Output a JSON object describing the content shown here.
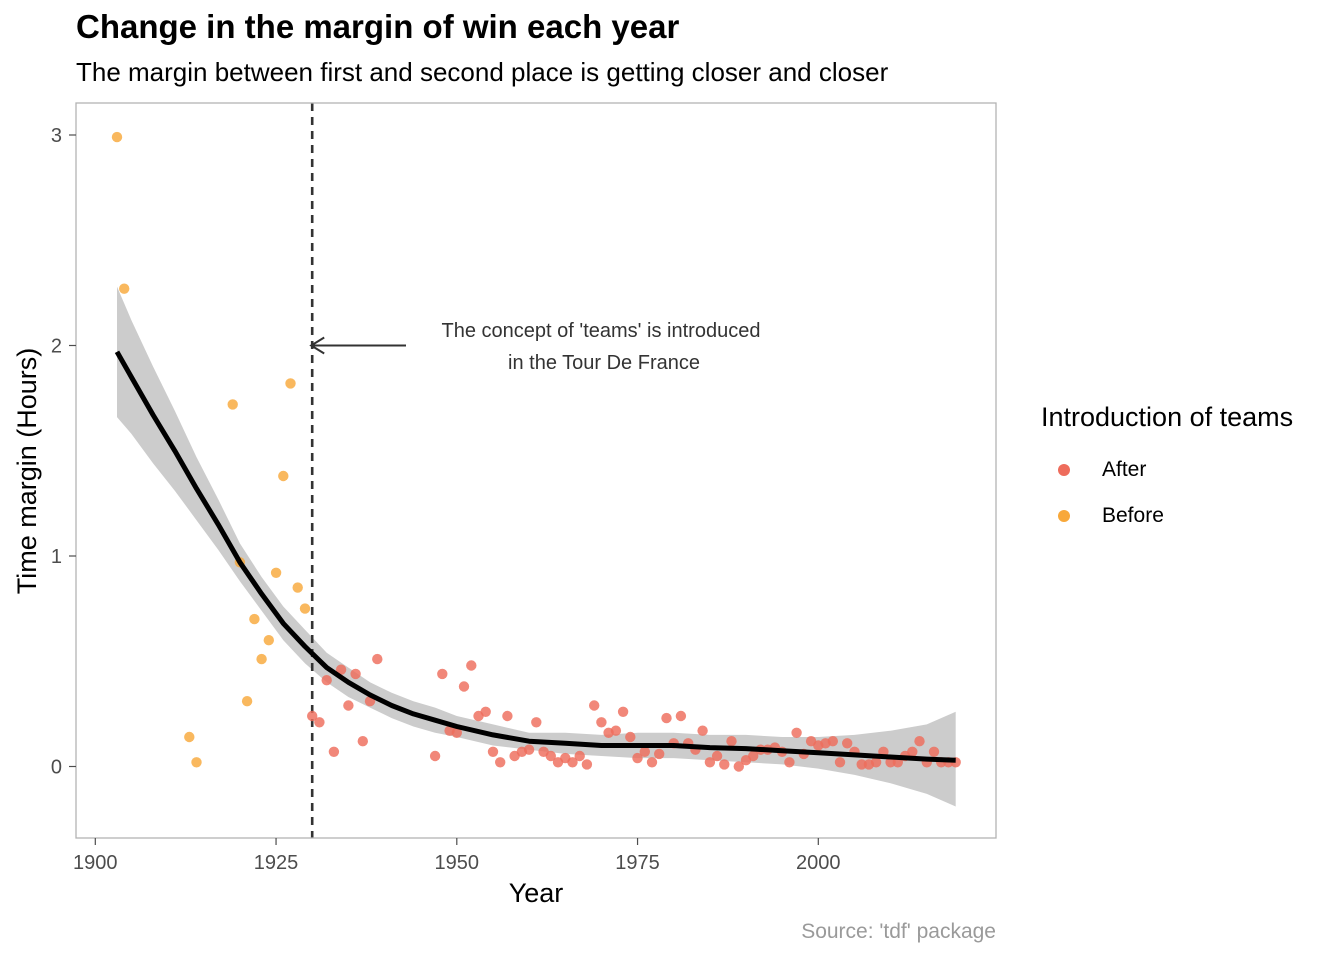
{
  "title": "Change in the margin of win each year",
  "subtitle": "The margin between first and second place is getting closer and closer",
  "caption": "Source: 'tdf' package",
  "legend": {
    "title": "Introduction of teams",
    "items": [
      {
        "label": "After",
        "color": "#ee6c5c"
      },
      {
        "label": "Before",
        "color": "#f8a83a"
      }
    ]
  },
  "annotation": {
    "lines": [
      "The concept of 'teams' is introduced",
      "in the Tour De France"
    ],
    "arrow_to": {
      "x": 1930,
      "y": 2.0
    },
    "vline_x": 1930
  },
  "chart_data": {
    "type": "scatter",
    "xlabel": "Year",
    "ylabel": "Time margin (Hours)",
    "xlim": [
      1900,
      2020
    ],
    "ylim": [
      -0.35,
      3.1
    ],
    "x_ticks": [
      1900,
      1925,
      1950,
      1975,
      2000
    ],
    "y_ticks": [
      0,
      1,
      2,
      3
    ],
    "grid": false,
    "legend_position": "right",
    "series": [
      {
        "name": "Before",
        "color": "#f8a83a",
        "points": [
          [
            1903,
            2.99
          ],
          [
            1904,
            2.27
          ],
          [
            1913,
            0.14
          ],
          [
            1914,
            0.02
          ],
          [
            1919,
            1.72
          ],
          [
            1920,
            0.97
          ],
          [
            1921,
            0.31
          ],
          [
            1922,
            0.7
          ],
          [
            1923,
            0.51
          ],
          [
            1924,
            0.6
          ],
          [
            1925,
            0.92
          ],
          [
            1926,
            1.38
          ],
          [
            1927,
            1.82
          ],
          [
            1928,
            0.85
          ],
          [
            1929,
            0.75
          ]
        ]
      },
      {
        "name": "After",
        "color": "#ee6c5c",
        "points": [
          [
            1930,
            0.24
          ],
          [
            1931,
            0.21
          ],
          [
            1932,
            0.41
          ],
          [
            1933,
            0.07
          ],
          [
            1934,
            0.46
          ],
          [
            1935,
            0.29
          ],
          [
            1936,
            0.44
          ],
          [
            1937,
            0.12
          ],
          [
            1938,
            0.31
          ],
          [
            1939,
            0.51
          ],
          [
            1947,
            0.05
          ],
          [
            1948,
            0.44
          ],
          [
            1949,
            0.17
          ],
          [
            1950,
            0.16
          ],
          [
            1951,
            0.38
          ],
          [
            1952,
            0.48
          ],
          [
            1953,
            0.24
          ],
          [
            1954,
            0.26
          ],
          [
            1955,
            0.07
          ],
          [
            1956,
            0.02
          ],
          [
            1957,
            0.24
          ],
          [
            1958,
            0.05
          ],
          [
            1959,
            0.07
          ],
          [
            1960,
            0.08
          ],
          [
            1961,
            0.21
          ],
          [
            1962,
            0.07
          ],
          [
            1963,
            0.05
          ],
          [
            1964,
            0.02
          ],
          [
            1965,
            0.04
          ],
          [
            1966,
            0.02
          ],
          [
            1967,
            0.05
          ],
          [
            1968,
            0.01
          ],
          [
            1969,
            0.29
          ],
          [
            1970,
            0.21
          ],
          [
            1971,
            0.16
          ],
          [
            1972,
            0.17
          ],
          [
            1973,
            0.26
          ],
          [
            1974,
            0.14
          ],
          [
            1975,
            0.04
          ],
          [
            1976,
            0.07
          ],
          [
            1977,
            0.02
          ],
          [
            1978,
            0.06
          ],
          [
            1979,
            0.23
          ],
          [
            1980,
            0.11
          ],
          [
            1981,
            0.24
          ],
          [
            1982,
            0.11
          ],
          [
            1983,
            0.08
          ],
          [
            1984,
            0.17
          ],
          [
            1985,
            0.02
          ],
          [
            1986,
            0.05
          ],
          [
            1987,
            0.01
          ],
          [
            1988,
            0.12
          ],
          [
            1989,
            0.0
          ],
          [
            1990,
            0.03
          ],
          [
            1991,
            0.05
          ],
          [
            1992,
            0.08
          ],
          [
            1993,
            0.08
          ],
          [
            1994,
            0.09
          ],
          [
            1995,
            0.07
          ],
          [
            1996,
            0.02
          ],
          [
            1997,
            0.16
          ],
          [
            1998,
            0.06
          ],
          [
            1999,
            0.12
          ],
          [
            2000,
            0.1
          ],
          [
            2001,
            0.11
          ],
          [
            2002,
            0.12
          ],
          [
            2003,
            0.02
          ],
          [
            2004,
            0.11
          ],
          [
            2005,
            0.07
          ],
          [
            2006,
            0.01
          ],
          [
            2007,
            0.01
          ],
          [
            2008,
            0.02
          ],
          [
            2009,
            0.07
          ],
          [
            2010,
            0.02
          ],
          [
            2011,
            0.02
          ],
          [
            2012,
            0.05
          ],
          [
            2013,
            0.07
          ],
          [
            2014,
            0.12
          ],
          [
            2015,
            0.02
          ],
          [
            2016,
            0.07
          ],
          [
            2017,
            0.02
          ],
          [
            2018,
            0.02
          ],
          [
            2019,
            0.02
          ]
        ]
      }
    ],
    "smooth": {
      "x": [
        1903,
        1905,
        1908,
        1911,
        1914,
        1917,
        1920,
        1923,
        1926,
        1929,
        1932,
        1935,
        1938,
        1941,
        1944,
        1947,
        1950,
        1955,
        1960,
        1965,
        1970,
        1975,
        1980,
        1985,
        1990,
        1995,
        2000,
        2005,
        2010,
        2015,
        2019
      ],
      "y": [
        1.97,
        1.85,
        1.67,
        1.5,
        1.32,
        1.15,
        0.97,
        0.82,
        0.68,
        0.57,
        0.47,
        0.4,
        0.34,
        0.29,
        0.25,
        0.22,
        0.19,
        0.15,
        0.12,
        0.11,
        0.1,
        0.1,
        0.1,
        0.09,
        0.085,
        0.075,
        0.065,
        0.055,
        0.045,
        0.035,
        0.03
      ],
      "lower": [
        1.66,
        1.58,
        1.44,
        1.31,
        1.17,
        1.03,
        0.88,
        0.74,
        0.6,
        0.49,
        0.4,
        0.33,
        0.28,
        0.23,
        0.19,
        0.16,
        0.14,
        0.1,
        0.08,
        0.06,
        0.05,
        0.04,
        0.04,
        0.03,
        0.02,
        0.01,
        -0.01,
        -0.04,
        -0.08,
        -0.13,
        -0.19
      ],
      "upper": [
        2.28,
        2.12,
        1.9,
        1.69,
        1.47,
        1.27,
        1.06,
        0.9,
        0.76,
        0.65,
        0.54,
        0.47,
        0.4,
        0.35,
        0.31,
        0.28,
        0.24,
        0.2,
        0.16,
        0.16,
        0.15,
        0.16,
        0.16,
        0.15,
        0.15,
        0.14,
        0.14,
        0.15,
        0.17,
        0.2,
        0.26
      ]
    }
  }
}
